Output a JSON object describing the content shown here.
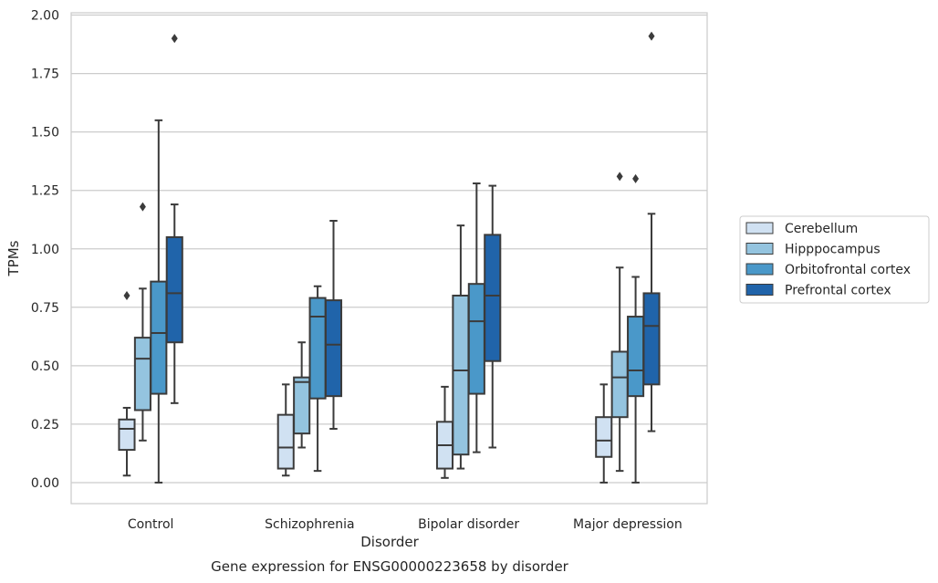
{
  "chart_data": {
    "type": "box",
    "caption": "Gene expression for ENSG00000223658 by disorder",
    "xlabel": "Disorder",
    "ylabel": "TPMs",
    "ylim": [
      -0.09,
      2.01
    ],
    "yticks": [
      0.0,
      0.25,
      0.5,
      0.75,
      1.0,
      1.25,
      1.5,
      1.75,
      2.0
    ],
    "ytick_labels": [
      "0.00",
      "0.25",
      "0.50",
      "0.75",
      "1.00",
      "1.25",
      "1.50",
      "1.75",
      "2.00"
    ],
    "grid": true,
    "legend_position": "right",
    "categories": [
      "Control",
      "Schizophrenia",
      "Bipolar disorder",
      "Major depression"
    ],
    "series": [
      {
        "name": "Cerebellum",
        "color": "#d0e1f2",
        "boxes": [
          {
            "whisker_low": 0.03,
            "q1": 0.14,
            "median": 0.23,
            "q3": 0.27,
            "whisker_high": 0.32,
            "outliers": [
              0.8
            ]
          },
          {
            "whisker_low": 0.03,
            "q1": 0.06,
            "median": 0.15,
            "q3": 0.29,
            "whisker_high": 0.42,
            "outliers": []
          },
          {
            "whisker_low": 0.02,
            "q1": 0.06,
            "median": 0.16,
            "q3": 0.26,
            "whisker_high": 0.41,
            "outliers": []
          },
          {
            "whisker_low": 0.0,
            "q1": 0.11,
            "median": 0.18,
            "q3": 0.28,
            "whisker_high": 0.42,
            "outliers": []
          }
        ]
      },
      {
        "name": "Hipppocampus",
        "color": "#94c4df",
        "boxes": [
          {
            "whisker_low": 0.18,
            "q1": 0.31,
            "median": 0.53,
            "q3": 0.62,
            "whisker_high": 0.83,
            "outliers": [
              1.18
            ]
          },
          {
            "whisker_low": 0.15,
            "q1": 0.21,
            "median": 0.43,
            "q3": 0.45,
            "whisker_high": 0.6,
            "outliers": []
          },
          {
            "whisker_low": 0.06,
            "q1": 0.12,
            "median": 0.48,
            "q3": 0.8,
            "whisker_high": 1.1,
            "outliers": []
          },
          {
            "whisker_low": 0.05,
            "q1": 0.28,
            "median": 0.45,
            "q3": 0.56,
            "whisker_high": 0.92,
            "outliers": [
              1.31
            ]
          }
        ]
      },
      {
        "name": "Orbitofrontal cortex",
        "color": "#4a98c9",
        "boxes": [
          {
            "whisker_low": 0.0,
            "q1": 0.38,
            "median": 0.64,
            "q3": 0.86,
            "whisker_high": 1.55,
            "outliers": []
          },
          {
            "whisker_low": 0.05,
            "q1": 0.36,
            "median": 0.71,
            "q3": 0.79,
            "whisker_high": 0.84,
            "outliers": []
          },
          {
            "whisker_low": 0.13,
            "q1": 0.38,
            "median": 0.69,
            "q3": 0.85,
            "whisker_high": 1.28,
            "outliers": []
          },
          {
            "whisker_low": 0.0,
            "q1": 0.37,
            "median": 0.48,
            "q3": 0.71,
            "whisker_high": 0.88,
            "outliers": [
              1.3
            ]
          }
        ]
      },
      {
        "name": "Prefrontal cortex",
        "color": "#2064aa",
        "boxes": [
          {
            "whisker_low": 0.34,
            "q1": 0.6,
            "median": 0.81,
            "q3": 1.05,
            "whisker_high": 1.19,
            "outliers": [
              1.9
            ]
          },
          {
            "whisker_low": 0.23,
            "q1": 0.37,
            "median": 0.59,
            "q3": 0.78,
            "whisker_high": 1.12,
            "outliers": []
          },
          {
            "whisker_low": 0.15,
            "q1": 0.52,
            "median": 0.8,
            "q3": 1.06,
            "whisker_high": 1.27,
            "outliers": []
          },
          {
            "whisker_low": 0.22,
            "q1": 0.42,
            "median": 0.67,
            "q3": 0.81,
            "whisker_high": 1.15,
            "outliers": [
              1.91
            ]
          }
        ]
      }
    ]
  }
}
